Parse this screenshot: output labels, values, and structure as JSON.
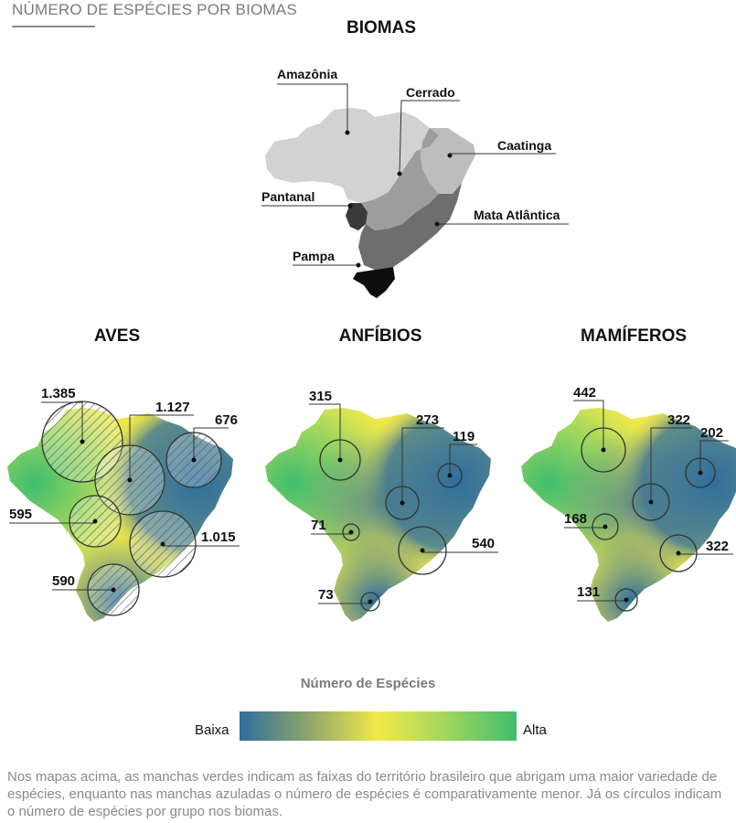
{
  "header": {
    "title": "NÚMERO DE ESPÉCIES POR BIOMAS"
  },
  "biomes_map": {
    "title": "BIOMAS",
    "labels": [
      "Amazônia",
      "Cerrado",
      "Caatinga",
      "Pantanal",
      "Mata Atlântica",
      "Pampa"
    ],
    "colors": {
      "amazonia": "#d2d2d2",
      "cerrado": "#9d9d9d",
      "caatinga": "#bdbdbd",
      "pantanal": "#3a3a3a",
      "mata_atlantica": "#6e6e6e",
      "pampa": "#0d0d0d"
    }
  },
  "panels": [
    {
      "title": "AVES",
      "values": {
        "amazonia": "1.385",
        "cerrado": "1.127",
        "caatinga": "676",
        "pantanal": "595",
        "mata_atlantica": "1.015",
        "pampa": "590"
      }
    },
    {
      "title": "ANFÍBIOS",
      "values": {
        "amazonia": "315",
        "cerrado": "273",
        "caatinga": "119",
        "pantanal": "71",
        "mata_atlantica": "540",
        "pampa": "73"
      }
    },
    {
      "title": "MAMÍFEROS",
      "values": {
        "amazonia": "442",
        "cerrado": "322",
        "caatinga": "202",
        "pantanal": "168",
        "mata_atlantica": "322",
        "pampa": "131"
      }
    }
  ],
  "legend": {
    "title": "Número de Espécies",
    "low_label": "Baixa",
    "high_label": "Alta",
    "gradient": [
      "#2f6e9e",
      "#8ea66a",
      "#f2e94a",
      "#9fd65f",
      "#3fbd6e"
    ]
  },
  "footnote": "Nos mapas acima, as manchas verdes indicam as faixas do território brasileiro que abrigam uma maior variedade de espécies, enquanto nas manchas azuladas o número de espécies é comparativamente menor. Já os círculos indicam o número de espécies por grupo nos biomas."
}
